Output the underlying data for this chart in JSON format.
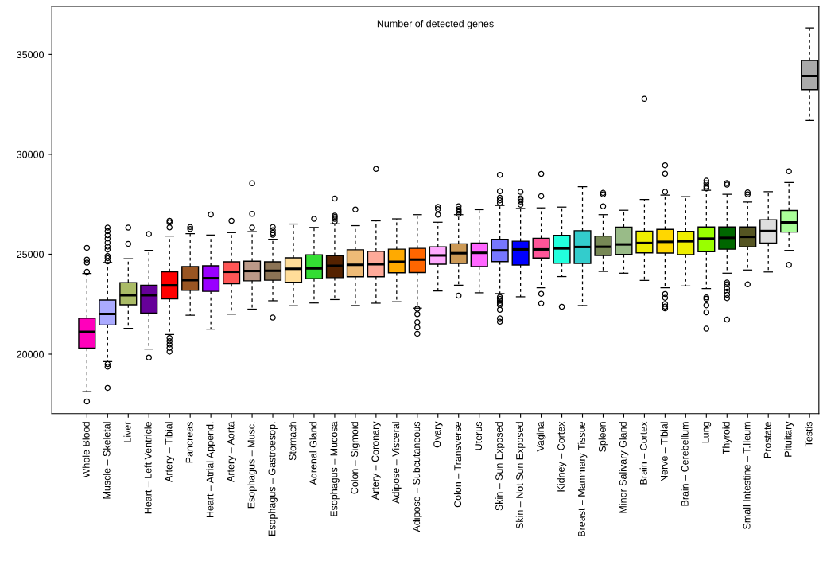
{
  "chart_data": {
    "type": "box",
    "title": "Number of detected genes",
    "categories": [
      "Whole Blood",
      "Muscle – Skeletal",
      "Liver",
      "Heart – Left Ventricle",
      "Artery – Tibial",
      "Pancreas",
      "Heart – Atrial Append.",
      "Artery – Aorta",
      "Esophagus – Musc.",
      "Esophagus – Gastroesop.",
      "Stomach",
      "Adrenal Gland",
      "Esophagus – Mucosa",
      "Colon – Sigmoid",
      "Artery – Coronary",
      "Adipose – Visceral",
      "Adipose – Subcutaneous",
      "Ovary",
      "Colon – Transverse",
      "Uterus",
      "Skin – Sun Exposed",
      "Skin – Not Sun Exposed",
      "Vagina",
      "Kidney – Cortex",
      "Breast – Mammary Tissue",
      "Spleen",
      "Minor Salivary Gland",
      "Brain – Cortex",
      "Nerve – Tibial",
      "Brain – Cerebellum",
      "Lung",
      "Thyroid",
      "Small Intestine – T.Ileum",
      "Prostate",
      "Pituitary",
      "Testis"
    ],
    "colors": [
      "#ff00bb",
      "#aaaaff",
      "#aabb66",
      "#660099",
      "#ff0000",
      "#995522",
      "#9900ff",
      "#ff5555",
      "#bb9988",
      "#8b7355",
      "#ffdd99",
      "#33dd33",
      "#552200",
      "#eebb77",
      "#ffaa99",
      "#ffaa00",
      "#ff6600",
      "#ffaaff",
      "#cc9955",
      "#ff66ff",
      "#7777ff",
      "#0000ff",
      "#ff5599",
      "#22ffdd",
      "#33cccc",
      "#778855",
      "#99bb88",
      "#eeee00",
      "#ffd700",
      "#eeee00",
      "#99ff00",
      "#006600",
      "#555522",
      "#dddddd",
      "#aaff99",
      "#aaaaaa"
    ],
    "boxes": [
      {
        "low": 18120,
        "q1": 20300,
        "median": 21110,
        "q3": 21800,
        "high": 24040,
        "outliers": [
          25320,
          24730,
          24580,
          24120,
          17630
        ]
      },
      {
        "low": 19630,
        "q1": 21460,
        "median": 22010,
        "q3": 22710,
        "high": 24580,
        "outliers": [
          26330,
          26150,
          25950,
          25780,
          25580,
          25380,
          25230,
          24910,
          24800,
          24640,
          19500,
          19370,
          18310
        ]
      },
      {
        "low": 21290,
        "q1": 22470,
        "median": 22950,
        "q3": 23580,
        "high": 24770,
        "outliers": [
          26330,
          25520
        ]
      },
      {
        "low": 20250,
        "q1": 22050,
        "median": 22950,
        "q3": 23450,
        "high": 25190,
        "outliers": [
          26010,
          19830
        ]
      },
      {
        "low": 20980,
        "q1": 22770,
        "median": 23440,
        "q3": 24120,
        "high": 25910,
        "outliers": [
          26670,
          26590,
          26340,
          20810,
          20650,
          20480,
          20310,
          20120
        ]
      },
      {
        "low": 21950,
        "q1": 23190,
        "median": 23700,
        "q3": 24380,
        "high": 26030,
        "outliers": [
          26360,
          26260
        ]
      },
      {
        "low": 21250,
        "q1": 23140,
        "median": 23800,
        "q3": 24420,
        "high": 25960,
        "outliers": [
          26990
        ]
      },
      {
        "low": 22000,
        "q1": 23520,
        "median": 24120,
        "q3": 24620,
        "high": 26080,
        "outliers": [
          26670
        ]
      },
      {
        "low": 22250,
        "q1": 23670,
        "median": 24160,
        "q3": 24650,
        "high": 26130,
        "outliers": [
          28550,
          27020,
          26330
        ]
      },
      {
        "low": 22670,
        "q1": 23700,
        "median": 24170,
        "q3": 24620,
        "high": 25750,
        "outliers": [
          26360,
          26200,
          26070,
          25970,
          21830
        ]
      },
      {
        "low": 22420,
        "q1": 23600,
        "median": 24270,
        "q3": 24820,
        "high": 26510
      },
      {
        "low": 22560,
        "q1": 23780,
        "median": 24290,
        "q3": 24970,
        "high": 26340,
        "outliers": [
          26770
        ]
      },
      {
        "low": 22730,
        "q1": 23830,
        "median": 24420,
        "q3": 24930,
        "high": 26520,
        "outliers": [
          27790,
          26930,
          26860,
          26770,
          26640
        ]
      },
      {
        "low": 22430,
        "q1": 23870,
        "median": 24470,
        "q3": 25220,
        "high": 26430,
        "outliers": [
          27240
        ]
      },
      {
        "low": 22550,
        "q1": 23870,
        "median": 24500,
        "q3": 25150,
        "high": 26670,
        "outliers": [
          29270
        ]
      },
      {
        "low": 22620,
        "q1": 24070,
        "median": 24620,
        "q3": 25250,
        "high": 26770
      },
      {
        "low": 22300,
        "q1": 24080,
        "median": 24730,
        "q3": 25290,
        "high": 26980,
        "outliers": [
          22270,
          22000,
          21600,
          21330,
          21020
        ]
      },
      {
        "low": 23160,
        "q1": 24500,
        "median": 24940,
        "q3": 25370,
        "high": 26600,
        "outliers": [
          27370,
          27260,
          26980
        ]
      },
      {
        "low": 23450,
        "q1": 24540,
        "median": 25050,
        "q3": 25520,
        "high": 26980,
        "outliers": [
          27400,
          27260,
          27180,
          27110,
          27020,
          22930
        ]
      },
      {
        "low": 23070,
        "q1": 24380,
        "median": 25070,
        "q3": 25560,
        "high": 27230
      },
      {
        "low": 23030,
        "q1": 24630,
        "median": 25190,
        "q3": 25750,
        "high": 27440,
        "outliers": [
          28970,
          28150,
          27830,
          27700,
          27570,
          22860,
          22770,
          22670,
          22560,
          22460,
          22220,
          21790,
          21620
        ]
      },
      {
        "low": 22870,
        "q1": 24460,
        "median": 25240,
        "q3": 25650,
        "high": 27290,
        "outliers": [
          28120,
          27800,
          27740,
          27640,
          27480
        ]
      },
      {
        "low": 23320,
        "q1": 24810,
        "median": 25240,
        "q3": 25800,
        "high": 27320,
        "outliers": [
          29020,
          27910,
          23020,
          22540
        ]
      },
      {
        "low": 23880,
        "q1": 24550,
        "median": 25290,
        "q3": 25950,
        "high": 27360,
        "outliers": [
          22370
        ]
      },
      {
        "low": 22430,
        "q1": 24540,
        "median": 25360,
        "q3": 26180,
        "high": 28380
      },
      {
        "low": 24140,
        "q1": 24940,
        "median": 25370,
        "q3": 25910,
        "high": 26980,
        "outliers": [
          28070,
          28000,
          27400
        ]
      },
      {
        "low": 24050,
        "q1": 24990,
        "median": 25490,
        "q3": 26350,
        "high": 27200
      },
      {
        "low": 23690,
        "q1": 25070,
        "median": 25560,
        "q3": 26160,
        "high": 27740,
        "outliers": [
          32770
        ]
      },
      {
        "low": 23320,
        "q1": 25060,
        "median": 25620,
        "q3": 26240,
        "high": 27960,
        "outliers": [
          29450,
          29030,
          28120,
          23010,
          22820,
          22510,
          22380,
          22290
        ]
      },
      {
        "low": 23410,
        "q1": 24980,
        "median": 25650,
        "q3": 26150,
        "high": 27880
      },
      {
        "low": 23280,
        "q1": 25130,
        "median": 25780,
        "q3": 26360,
        "high": 28200,
        "outliers": [
          28680,
          28550,
          28390,
          28290,
          22840,
          22770,
          22440,
          22090,
          21270
        ]
      },
      {
        "low": 24050,
        "q1": 25250,
        "median": 25820,
        "q3": 26360,
        "high": 28000,
        "outliers": [
          28560,
          28480,
          23580,
          23490,
          23290,
          23130,
          22970,
          22800,
          21730
        ]
      },
      {
        "low": 24210,
        "q1": 25370,
        "median": 25870,
        "q3": 26360,
        "high": 27610,
        "outliers": [
          28090,
          28000,
          23490
        ]
      },
      {
        "low": 24110,
        "q1": 25560,
        "median": 26160,
        "q3": 26720,
        "high": 28130
      },
      {
        "low": 25190,
        "q1": 26110,
        "median": 26590,
        "q3": 27190,
        "high": 28590,
        "outliers": [
          29150,
          24470
        ]
      },
      {
        "low": 31690,
        "q1": 33230,
        "median": 33920,
        "q3": 34690,
        "high": 36320
      }
    ],
    "ylim": [
      17020,
      37410
    ],
    "yticks": [
      20000,
      25000,
      30000,
      35000
    ],
    "grid": false
  }
}
